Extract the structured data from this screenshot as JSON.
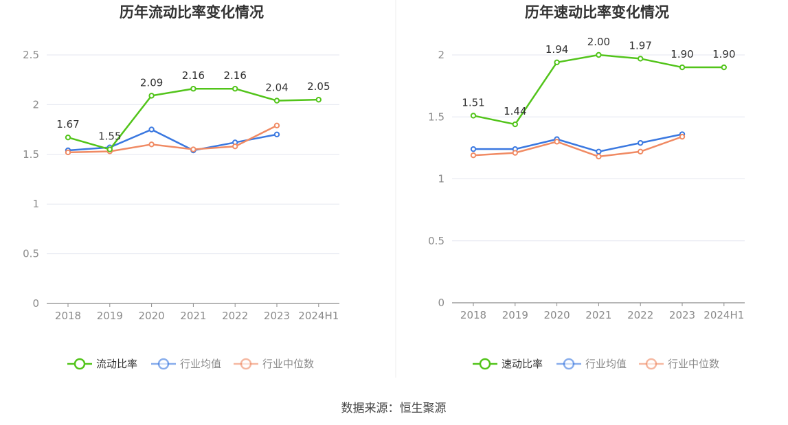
{
  "source": "数据来源：恒生聚源",
  "chart_data": [
    {
      "type": "line",
      "title": "历年流动比率变化情况",
      "categories": [
        "2018",
        "2019",
        "2020",
        "2021",
        "2022",
        "2023",
        "2024H1"
      ],
      "ylim": [
        0,
        2.5
      ],
      "yticks": [
        "0",
        "0.5",
        "1",
        "1.5",
        "2",
        "2.5"
      ],
      "grid": true,
      "legend_position": "bottom",
      "series": [
        {
          "name": "流动比率",
          "color": "#52c41a",
          "values": [
            1.67,
            1.55,
            2.09,
            2.16,
            2.16,
            2.04,
            2.05
          ],
          "labels": [
            "1.67",
            "1.55",
            "2.09",
            "2.16",
            "2.16",
            "2.04",
            "2.05"
          ]
        },
        {
          "name": "行业均值",
          "color": "#3a78e0",
          "values": [
            1.54,
            1.57,
            1.75,
            1.54,
            1.62,
            1.7,
            null
          ]
        },
        {
          "name": "行业中位数",
          "color": "#f08a63",
          "values": [
            1.52,
            1.53,
            1.6,
            1.55,
            1.58,
            1.79,
            null
          ]
        }
      ]
    },
    {
      "type": "line",
      "title": "历年速动比率变化情况",
      "categories": [
        "2018",
        "2019",
        "2020",
        "2021",
        "2022",
        "2023",
        "2024H1"
      ],
      "ylim": [
        0,
        2
      ],
      "yticks": [
        "0",
        "0.5",
        "1",
        "1.5",
        "2"
      ],
      "grid": true,
      "legend_position": "bottom",
      "series": [
        {
          "name": "速动比率",
          "color": "#52c41a",
          "values": [
            1.51,
            1.44,
            1.94,
            2.0,
            1.97,
            1.9,
            1.9
          ],
          "labels": [
            "1.51",
            "1.44",
            "1.94",
            "2.00",
            "1.97",
            "1.90",
            "1.90"
          ]
        },
        {
          "name": "行业均值",
          "color": "#3a78e0",
          "values": [
            1.24,
            1.24,
            1.32,
            1.22,
            1.29,
            1.36,
            null
          ]
        },
        {
          "name": "行业中位数",
          "color": "#f08a63",
          "values": [
            1.19,
            1.21,
            1.3,
            1.18,
            1.22,
            1.34,
            null
          ]
        }
      ]
    }
  ]
}
